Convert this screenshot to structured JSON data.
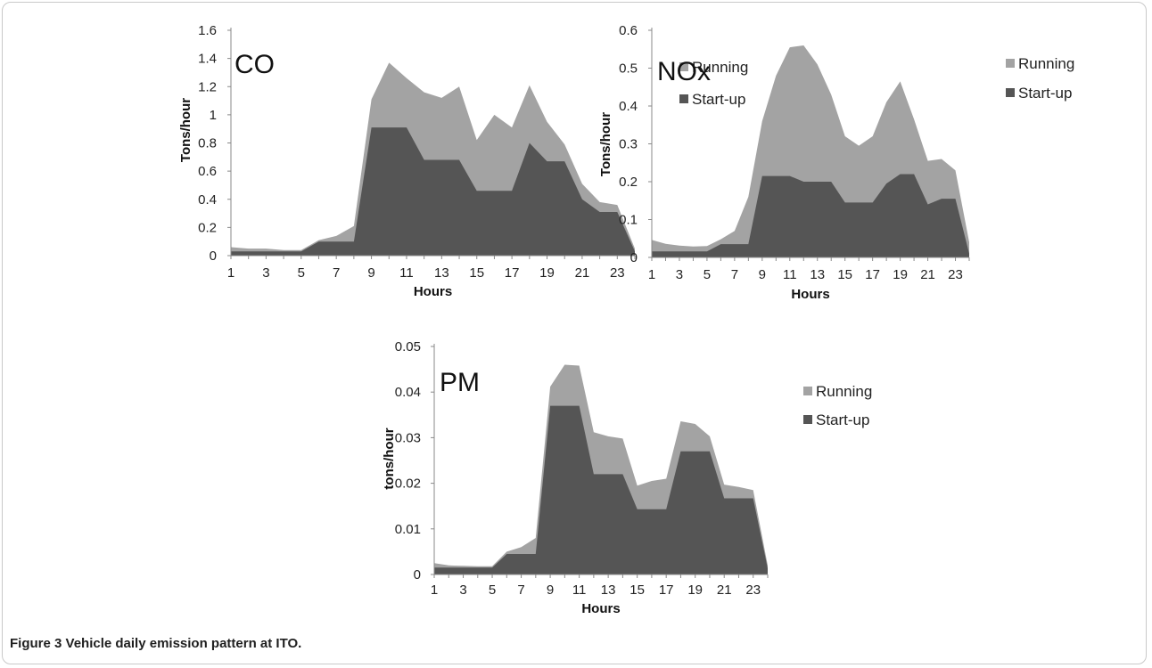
{
  "caption": "Figure 3 Vehicle daily emission pattern at ITO.",
  "chart_data": [
    {
      "type": "area",
      "stacked": true,
      "title": "CO",
      "xlabel": "Hours",
      "ylabel": "Tons/hour",
      "ylim": [
        0,
        1.6
      ],
      "x": [
        1,
        2,
        3,
        4,
        5,
        6,
        7,
        8,
        9,
        10,
        11,
        12,
        13,
        14,
        15,
        16,
        17,
        18,
        19,
        20,
        21,
        22,
        23,
        24
      ],
      "x_ticks": [
        "1",
        "3",
        "5",
        "7",
        "9",
        "11",
        "13",
        "15",
        "17",
        "19",
        "21",
        "23"
      ],
      "y_ticks": [
        "0",
        "0.2",
        "0.4",
        "0.6",
        "0.8",
        "1",
        "1.2",
        "1.4",
        "1.6"
      ],
      "legend": "right",
      "series": [
        {
          "name": "Start-up",
          "color": "#555555",
          "values": [
            0.03,
            0.03,
            0.03,
            0.03,
            0.03,
            0.1,
            0.1,
            0.1,
            0.91,
            0.91,
            0.91,
            0.68,
            0.68,
            0.68,
            0.46,
            0.46,
            0.46,
            0.8,
            0.67,
            0.67,
            0.4,
            0.31,
            0.31,
            0.03
          ]
        },
        {
          "name": "Running",
          "color": "#a3a3a3",
          "values": [
            0.03,
            0.02,
            0.02,
            0.01,
            0.01,
            0.01,
            0.04,
            0.11,
            0.2,
            0.46,
            0.35,
            0.48,
            0.44,
            0.52,
            0.36,
            0.54,
            0.45,
            0.41,
            0.28,
            0.12,
            0.11,
            0.07,
            0.05,
            0.02
          ]
        }
      ]
    },
    {
      "type": "area",
      "stacked": true,
      "title": "NOx",
      "xlabel": "Hours",
      "ylabel": "Tons/hour",
      "ylim": [
        0,
        0.6
      ],
      "x": [
        1,
        2,
        3,
        4,
        5,
        6,
        7,
        8,
        9,
        10,
        11,
        12,
        13,
        14,
        15,
        16,
        17,
        18,
        19,
        20,
        21,
        22,
        23,
        24
      ],
      "x_ticks": [
        "1",
        "3",
        "5",
        "7",
        "9",
        "11",
        "13",
        "15",
        "17",
        "19",
        "21",
        "23"
      ],
      "y_ticks": [
        "0",
        "0.1",
        "0.2",
        "0.3",
        "0.4",
        "0.5",
        "0.6"
      ],
      "legend": "right",
      "series": [
        {
          "name": "Start-up",
          "color": "#555555",
          "values": [
            0.016,
            0.016,
            0.016,
            0.016,
            0.016,
            0.035,
            0.035,
            0.035,
            0.215,
            0.215,
            0.215,
            0.2,
            0.2,
            0.2,
            0.145,
            0.145,
            0.145,
            0.195,
            0.22,
            0.22,
            0.14,
            0.155,
            0.155,
            0.01
          ]
        },
        {
          "name": "Running",
          "color": "#a3a3a3",
          "values": [
            0.03,
            0.02,
            0.015,
            0.013,
            0.014,
            0.013,
            0.035,
            0.125,
            0.145,
            0.265,
            0.34,
            0.36,
            0.31,
            0.23,
            0.175,
            0.15,
            0.175,
            0.215,
            0.245,
            0.145,
            0.115,
            0.105,
            0.075,
            0.03
          ]
        }
      ]
    },
    {
      "type": "area",
      "stacked": true,
      "title": "PM",
      "xlabel": "Hours",
      "ylabel": "tons/hour",
      "ylim": [
        0,
        0.05
      ],
      "x": [
        1,
        2,
        3,
        4,
        5,
        6,
        7,
        8,
        9,
        10,
        11,
        12,
        13,
        14,
        15,
        16,
        17,
        18,
        19,
        20,
        21,
        22,
        23,
        24
      ],
      "x_ticks": [
        "1",
        "3",
        "5",
        "7",
        "9",
        "11",
        "13",
        "15",
        "17",
        "19",
        "21",
        "23"
      ],
      "y_ticks": [
        "0",
        "0.01",
        "0.02",
        "0.03",
        "0.04",
        "0.05"
      ],
      "legend": "right",
      "series": [
        {
          "name": "Start-up",
          "color": "#555555",
          "values": [
            0.0015,
            0.0015,
            0.0015,
            0.0015,
            0.0015,
            0.0045,
            0.0045,
            0.0045,
            0.037,
            0.037,
            0.037,
            0.022,
            0.022,
            0.022,
            0.0143,
            0.0143,
            0.0143,
            0.027,
            0.027,
            0.027,
            0.0167,
            0.0167,
            0.0167,
            0.0013
          ]
        },
        {
          "name": "Running",
          "color": "#a3a3a3",
          "values": [
            0.001,
            0.0005,
            0.0004,
            0.0003,
            0.0003,
            0.0005,
            0.0015,
            0.0035,
            0.0042,
            0.009,
            0.0088,
            0.0092,
            0.0083,
            0.0078,
            0.0052,
            0.0062,
            0.0067,
            0.0066,
            0.006,
            0.0033,
            0.003,
            0.0025,
            0.0018,
            0.0007
          ]
        }
      ]
    }
  ]
}
